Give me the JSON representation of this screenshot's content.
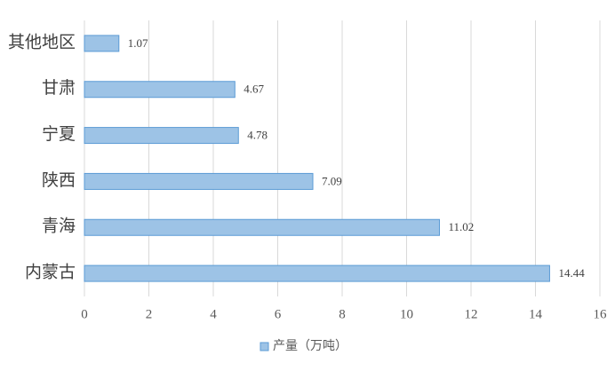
{
  "chart_data": {
    "type": "bar",
    "orientation": "horizontal",
    "categories": [
      "其他地区",
      "甘肃",
      "宁夏",
      "陕西",
      "青海",
      "内蒙古"
    ],
    "series": [
      {
        "name": "产量（万吨）",
        "color": "#9dc3e6",
        "values": [
          1.07,
          4.67,
          4.78,
          7.09,
          11.02,
          14.44
        ]
      }
    ],
    "xlim": [
      0,
      16
    ],
    "xticks": [
      0,
      2,
      4,
      6,
      8,
      10,
      12,
      14,
      16
    ],
    "grid": true,
    "legend": "bottom"
  }
}
